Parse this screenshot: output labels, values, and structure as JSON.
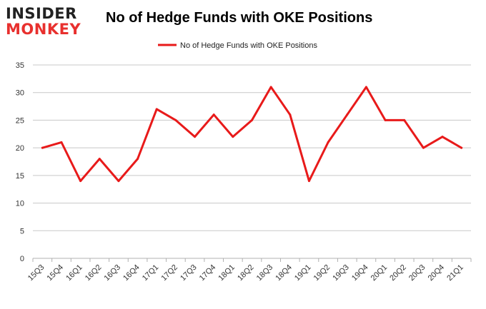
{
  "brand": {
    "logo_top": "INSIDER",
    "logo_bottom": "MONKEY"
  },
  "colors": {
    "series": "#e81a1a",
    "grid": "#c8c8c8",
    "logo_red": "#e8302e"
  },
  "chart_data": {
    "type": "line",
    "title": "No of Hedge Funds with OKE Positions",
    "xlabel": "",
    "ylabel": "",
    "legend_position": "top-center",
    "grid": true,
    "ylim": [
      0,
      35
    ],
    "yticks": [
      0,
      5,
      10,
      15,
      20,
      25,
      30,
      35
    ],
    "categories": [
      "15Q3",
      "15Q4",
      "16Q1",
      "16Q2",
      "16Q3",
      "16Q4",
      "17Q1",
      "17Q2",
      "17Q3",
      "17Q4",
      "18Q1",
      "18Q2",
      "18Q3",
      "18Q4",
      "19Q1",
      "19Q2",
      "19Q3",
      "19Q4",
      "20Q1",
      "20Q2",
      "20Q3",
      "20Q4",
      "21Q1"
    ],
    "series": [
      {
        "name": "No of Hedge Funds with OKE Positions",
        "values": [
          20,
          21,
          14,
          18,
          14,
          18,
          27,
          25,
          22,
          26,
          22,
          25,
          31,
          26,
          14,
          21,
          26,
          31,
          25,
          25,
          20,
          22,
          20
        ]
      }
    ]
  }
}
